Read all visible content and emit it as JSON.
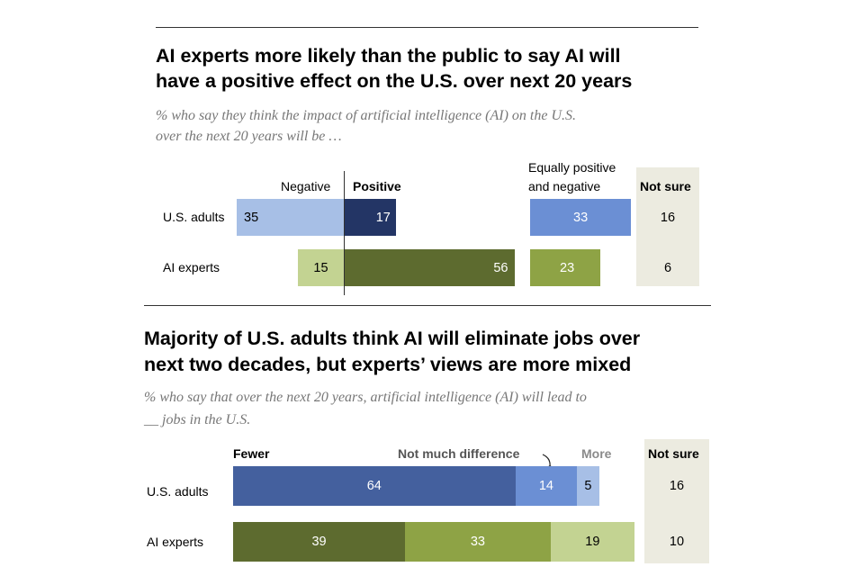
{
  "chart_data": [
    {
      "type": "bar",
      "title_line1": "AI experts more likely than the public to say AI will",
      "title_line2": "have a positive effect on the U.S. over next 20 years",
      "subtitle_line1": "% who say they think the impact of artificial intelligence (AI) on the U.S.",
      "subtitle_line2": "over the next 20 years will be …",
      "categories": [
        "U.S. adults",
        "AI experts"
      ],
      "series": [
        {
          "name": "Negative",
          "values": [
            35,
            15
          ]
        },
        {
          "name": "Positive",
          "values": [
            17,
            56
          ]
        },
        {
          "name_line1": "Equally positive",
          "name_line2": "and negative",
          "values": [
            33,
            23
          ]
        },
        {
          "name": "Not sure",
          "values": [
            16,
            6
          ]
        }
      ]
    },
    {
      "type": "bar",
      "title_line1": "Majority of U.S. adults think AI will eliminate jobs over",
      "title_line2": "next two decades, but experts’ views are more mixed",
      "subtitle_line1": "% who say that over the next 20 years, artificial intelligence (AI) will lead to",
      "subtitle_line2": "__ jobs in the U.S.",
      "categories": [
        "U.S. adults",
        "AI experts"
      ],
      "series": [
        {
          "name": "Fewer",
          "values": [
            64,
            39
          ]
        },
        {
          "name": "Not much difference",
          "values": [
            14,
            33
          ]
        },
        {
          "name": "More",
          "values": [
            5,
            19
          ]
        },
        {
          "name": "Not sure",
          "values": [
            16,
            10
          ]
        }
      ]
    }
  ],
  "colors": {
    "adults_negative": "#a7bfe6",
    "adults_positive": "#233565",
    "adults_equal": "#6b8fd4",
    "experts_negative": "#c3d392",
    "experts_positive": "#5d6b2f",
    "experts_equal": "#8ea345",
    "adults_fewer": "#44609e",
    "adults_nomuch": "#6b8fd4",
    "adults_more": "#a7bfe6",
    "experts_fewer": "#5d6b2f",
    "experts_nomuch": "#8ea345",
    "experts_more": "#c3d392",
    "notsure_panel": "#ecebe0"
  }
}
